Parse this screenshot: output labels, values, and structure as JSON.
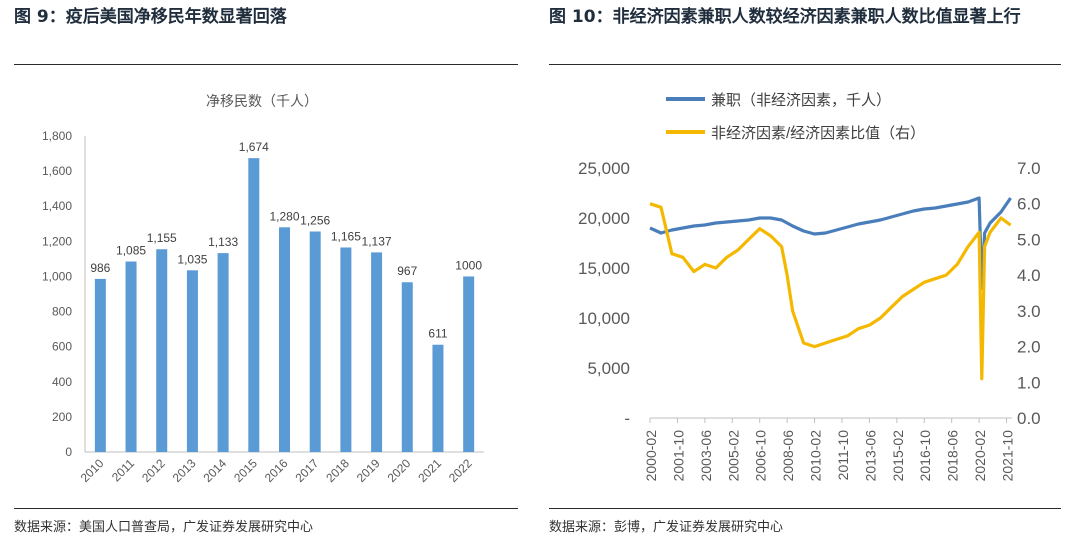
{
  "left": {
    "figure_title": "图 9：疫后美国净移民年数显著回落",
    "source": "数据来源：美国人口普查局，广发证券发展研究中心"
  },
  "right": {
    "figure_title": "图 10：非经济因素兼职人数较经济因素兼职人数比值显著上行",
    "source": "数据来源：彭博，广发证券发展研究中心"
  },
  "chart_data": [
    {
      "type": "bar",
      "title": "净移民数（千人）",
      "categories": [
        "2010",
        "2011",
        "2012",
        "2013",
        "2014",
        "2015",
        "2016",
        "2017",
        "2018",
        "2019",
        "2020",
        "2021",
        "2022"
      ],
      "values": [
        986,
        1085,
        1155,
        1035,
        1133,
        1674,
        1280,
        1256,
        1165,
        1137,
        967,
        611,
        1000
      ],
      "value_labels": [
        "986",
        "1,085",
        "1,155",
        "1,035",
        "1,133",
        "1,674",
        "1,280",
        "1,256",
        "1,165",
        "1,137",
        "967",
        "611",
        "1000"
      ],
      "ylim": [
        0,
        1800
      ],
      "yticks": [
        "0",
        "200",
        "400",
        "600",
        "800",
        "1,000",
        "1,200",
        "1,400",
        "1,600",
        "1,800"
      ],
      "bar_color": "#5b9bd5",
      "grid": false
    },
    {
      "type": "line",
      "legend_position": "top",
      "x_tick_labels": [
        "2000-02",
        "2001-10",
        "2003-06",
        "2005-02",
        "2006-10",
        "2008-06",
        "2010-02",
        "2011-10",
        "2013-06",
        "2015-02",
        "2016-10",
        "2018-06",
        "2020-02",
        "2021-10"
      ],
      "y_left": {
        "ticks": [
          "-",
          "5,000",
          "10,000",
          "15,000",
          "20,000",
          "25,000"
        ],
        "lim": [
          0,
          25000
        ]
      },
      "y_right": {
        "ticks": [
          "0.0",
          "1.0",
          "2.0",
          "3.0",
          "4.0",
          "5.0",
          "6.0",
          "7.0"
        ],
        "lim": [
          0,
          7
        ]
      },
      "series": [
        {
          "name": "兼职（非经济因素，千人）",
          "axis": "left",
          "color": "#4a7ebb",
          "x": [
            "2000-02",
            "2000-10",
            "2001-06",
            "2002-02",
            "2002-10",
            "2003-06",
            "2004-02",
            "2004-10",
            "2005-06",
            "2006-02",
            "2006-10",
            "2007-06",
            "2008-02",
            "2008-10",
            "2009-06",
            "2010-02",
            "2010-10",
            "2011-06",
            "2012-02",
            "2012-10",
            "2013-06",
            "2014-02",
            "2014-10",
            "2015-06",
            "2016-02",
            "2016-10",
            "2017-06",
            "2018-02",
            "2018-10",
            "2019-06",
            "2020-02",
            "2020-04",
            "2020-06",
            "2020-10",
            "2021-06",
            "2022-01"
          ],
          "values": [
            19000,
            18500,
            18800,
            19000,
            19200,
            19300,
            19500,
            19600,
            19700,
            19800,
            20000,
            20000,
            19800,
            19200,
            18700,
            18400,
            18500,
            18800,
            19100,
            19400,
            19600,
            19800,
            20100,
            20400,
            20700,
            20900,
            21000,
            21200,
            21400,
            21600,
            22000,
            13000,
            18500,
            19500,
            20600,
            22000
          ]
        },
        {
          "name": "非经济因素/经济因素比值（右）",
          "axis": "right",
          "color": "#f5b800",
          "x": [
            "2000-02",
            "2000-10",
            "2001-06",
            "2002-02",
            "2002-10",
            "2003-06",
            "2004-02",
            "2004-10",
            "2005-06",
            "2006-02",
            "2006-10",
            "2007-06",
            "2008-02",
            "2008-06",
            "2008-10",
            "2009-06",
            "2010-02",
            "2010-10",
            "2011-06",
            "2012-02",
            "2012-10",
            "2013-06",
            "2014-02",
            "2014-10",
            "2015-06",
            "2016-02",
            "2016-10",
            "2017-06",
            "2018-02",
            "2018-10",
            "2019-06",
            "2020-02",
            "2020-04",
            "2020-06",
            "2020-10",
            "2021-06",
            "2022-01"
          ],
          "values": [
            6.0,
            5.9,
            4.6,
            4.5,
            4.1,
            4.3,
            4.2,
            4.5,
            4.7,
            5.0,
            5.3,
            5.1,
            4.8,
            4.0,
            3.0,
            2.1,
            2.0,
            2.1,
            2.2,
            2.3,
            2.5,
            2.6,
            2.8,
            3.1,
            3.4,
            3.6,
            3.8,
            3.9,
            4.0,
            4.3,
            4.8,
            5.2,
            1.1,
            4.8,
            5.2,
            5.6,
            5.4
          ]
        }
      ]
    }
  ]
}
